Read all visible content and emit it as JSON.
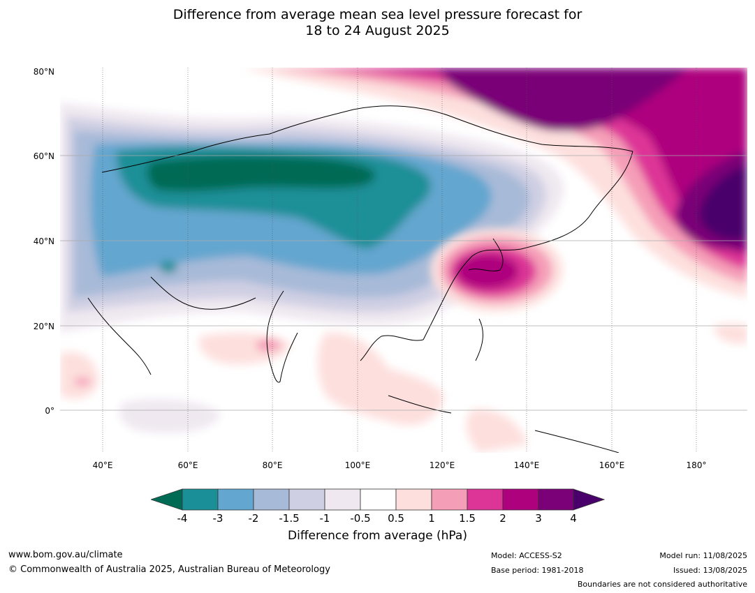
{
  "title": {
    "line1": "Difference from average mean sea level pressure forecast for",
    "line2": "18 to 24 August 2025"
  },
  "axes": {
    "lat_labels": [
      "80°N",
      "60°N",
      "40°N",
      "20°N",
      "0°"
    ],
    "lon_labels": [
      "40°E",
      "60°E",
      "80°E",
      "100°E",
      "120°E",
      "140°E",
      "160°E",
      "180°"
    ]
  },
  "legend": {
    "title": "Difference from average (hPa)",
    "ticks": [
      "-4",
      "-3",
      "-2",
      "-1.5",
      "-1",
      "-0.5",
      "0.5",
      "1",
      "1.5",
      "2",
      "3",
      "4"
    ],
    "colors": [
      "#006b54",
      "#1b8f97",
      "#63a6cf",
      "#a7bad8",
      "#cfcfe3",
      "#efe8f0",
      "#ffffff",
      "#fde0de",
      "#f59eb8",
      "#dd3497",
      "#ae017e",
      "#7a0177",
      "#49006a"
    ]
  },
  "footer": {
    "website": "www.bom.gov.au/climate",
    "copyright": "© Commonwealth of Australia 2025, Australian Bureau of Meteorology",
    "model": "Model: ACCESS-S2",
    "base_period": "Base period: 1981-2018",
    "model_run": "Model run: 11/08/2025",
    "issued": "Issued: 13/08/2025",
    "disclaimer": "Boundaries are not considered authoritative"
  }
}
